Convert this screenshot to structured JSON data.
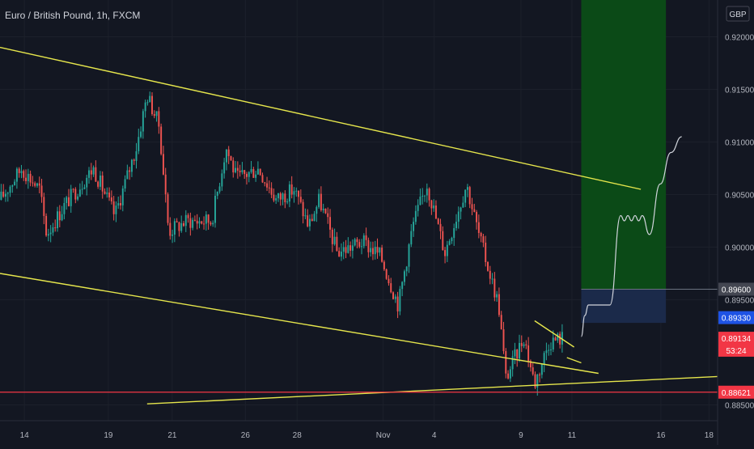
{
  "header": {
    "symbol_title": "Euro / British Pound, 1h, FXCM"
  },
  "currency_button": "GBP",
  "colors": {
    "background": "#131722",
    "up_candle": "#26a69a",
    "down_candle": "#ef5350",
    "trendline": "#e6e64c",
    "support_line": "#f23645",
    "projection": "#d1d4dc",
    "target_zone": "#0b4a17",
    "risk_zone": "#1b2a4a",
    "axis_text": "#b2b5be"
  },
  "chart_data": {
    "type": "candlestick",
    "title": "Euro / British Pound, 1h, FXCM",
    "ylim": [
      0.8835,
      0.9235
    ],
    "y_ticks": [
      "0.92000",
      "0.91500",
      "0.91000",
      "0.90500",
      "0.90000",
      "0.89500",
      "0.88500"
    ],
    "x_ticks": [
      "14",
      "19",
      "21",
      "26",
      "28",
      "Nov",
      "4",
      "9",
      "11",
      "16",
      "18"
    ],
    "price_path_anchors": [
      [
        0,
        0.9045
      ],
      [
        0.03,
        0.9075
      ],
      [
        0.055,
        0.9055
      ],
      [
        0.065,
        0.9012
      ],
      [
        0.09,
        0.904
      ],
      [
        0.13,
        0.9075
      ],
      [
        0.16,
        0.903
      ],
      [
        0.19,
        0.9095
      ],
      [
        0.205,
        0.9145
      ],
      [
        0.222,
        0.9115
      ],
      [
        0.235,
        0.9015
      ],
      [
        0.26,
        0.9025
      ],
      [
        0.295,
        0.9025
      ],
      [
        0.315,
        0.9095
      ],
      [
        0.33,
        0.9065
      ],
      [
        0.36,
        0.9075
      ],
      [
        0.385,
        0.9045
      ],
      [
        0.41,
        0.9055
      ],
      [
        0.43,
        0.902
      ],
      [
        0.445,
        0.9045
      ],
      [
        0.47,
        0.8995
      ],
      [
        0.505,
        0.9005
      ],
      [
        0.53,
        0.8992
      ],
      [
        0.555,
        0.8945
      ],
      [
        0.575,
        0.902
      ],
      [
        0.595,
        0.906
      ],
      [
        0.62,
        0.8995
      ],
      [
        0.65,
        0.906
      ],
      [
        0.668,
        0.901
      ],
      [
        0.695,
        0.8945
      ],
      [
        0.705,
        0.8875
      ],
      [
        0.73,
        0.8915
      ],
      [
        0.745,
        0.887
      ],
      [
        0.765,
        0.891
      ],
      [
        0.785,
        0.8914
      ]
    ],
    "annotations": {
      "upper_channel_line": [
        [
          0,
          0.919
        ],
        [
          0.893,
          0.9055
        ]
      ],
      "lower_channel_line": [
        [
          0,
          0.8975
        ],
        [
          0.834,
          0.888
        ]
      ],
      "rising_support_line": [
        [
          0.205,
          0.8851
        ],
        [
          1,
          0.8877
        ]
      ],
      "wedge_upper": [
        [
          0.745,
          0.893
        ],
        [
          0.8,
          0.8905
        ]
      ],
      "wedge_lower": [
        [
          0.79,
          0.8895
        ],
        [
          0.81,
          0.889
        ]
      ],
      "horizontal_support": 0.88621,
      "target_zone": {
        "x": [
          0.81,
          0.928
        ],
        "y": [
          0.896,
          0.9235
        ]
      },
      "risk_zone": {
        "x": [
          0.81,
          0.928
        ],
        "y": [
          0.8928,
          0.896
        ]
      },
      "projection_path": [
        [
          0.81,
          0.8915
        ],
        [
          0.815,
          0.8935
        ],
        [
          0.82,
          0.8945
        ],
        [
          0.85,
          0.8945
        ],
        [
          0.865,
          0.903
        ],
        [
          0.87,
          0.9025
        ],
        [
          0.875,
          0.903
        ],
        [
          0.88,
          0.9025
        ],
        [
          0.885,
          0.903
        ],
        [
          0.89,
          0.9025
        ],
        [
          0.895,
          0.903
        ],
        [
          0.905,
          0.9012
        ],
        [
          0.92,
          0.906
        ],
        [
          0.935,
          0.909
        ],
        [
          0.95,
          0.9105
        ]
      ]
    },
    "price_labels": [
      {
        "text": "0.89600",
        "value": 0.896,
        "style": "gray"
      },
      {
        "text": "0.89330",
        "value": 0.8933,
        "style": "blue"
      },
      {
        "text": "0.89134",
        "value": 0.89134,
        "style": "red"
      },
      {
        "text": "53:24",
        "value": 0.8902,
        "style": "red"
      },
      {
        "text": "0.88621",
        "value": 0.88621,
        "style": "red"
      }
    ]
  }
}
